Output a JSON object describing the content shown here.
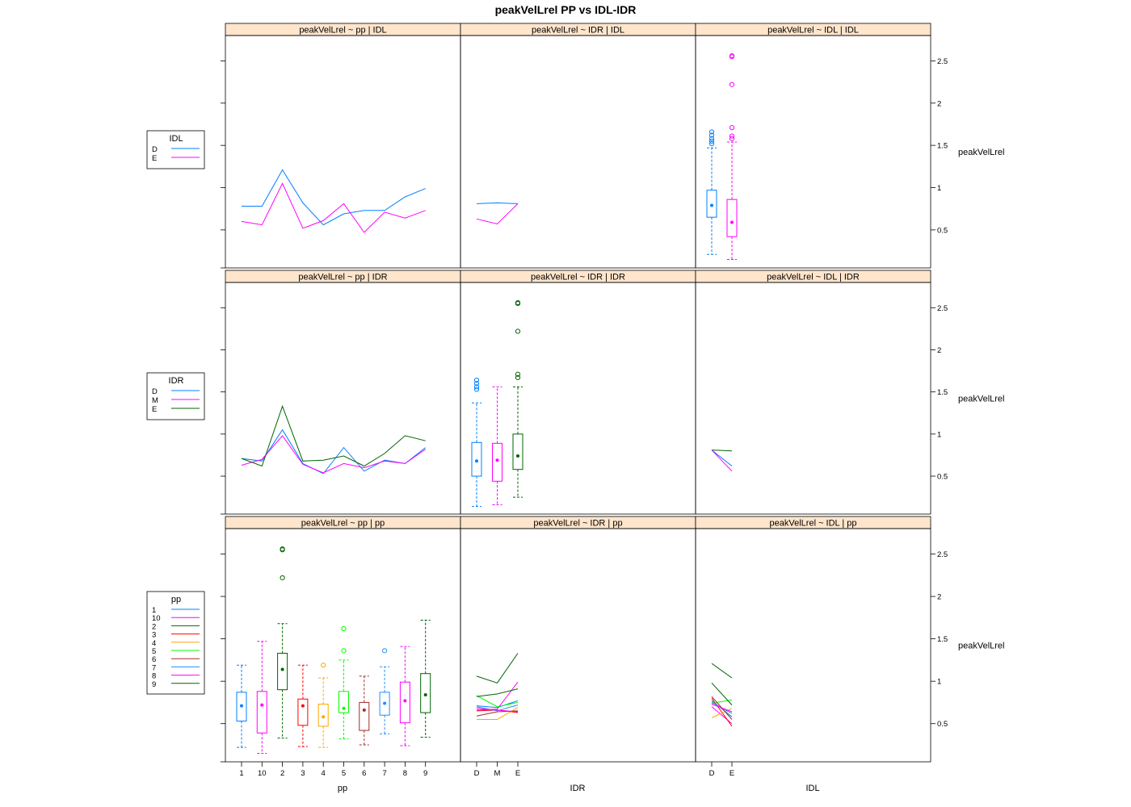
{
  "title": "peakVelLrel   PP vs IDL-IDR",
  "colors": {
    "strip_fill": "#ffe5cc",
    "pp": {
      "1": "#0080ff",
      "10": "#ff00ff",
      "2": "#006400",
      "3": "#ff0000",
      "4": "#ffa500",
      "5": "#00ff00",
      "6": "#a52a2a",
      "7": "#1e90ff",
      "8": "#ff00ff",
      "9": "#006400"
    },
    "IDL": {
      "D": "#0080ff",
      "E": "#ff00ff"
    },
    "IDR": {
      "D": "#0080ff",
      "M": "#ff00ff",
      "E": "#006400"
    }
  },
  "y_axis": {
    "label": "peakVelLrel",
    "ticks": [
      "0.5",
      "1",
      "1.5",
      "2",
      "2.5"
    ],
    "ylim": [
      0.05,
      2.8
    ]
  },
  "columns": [
    {
      "label": "pp",
      "categories": [
        "1",
        "10",
        "2",
        "3",
        "4",
        "5",
        "6",
        "7",
        "8",
        "9"
      ]
    },
    {
      "label": "IDR",
      "categories": [
        "D",
        "M",
        "E"
      ]
    },
    {
      "label": "IDL",
      "categories": [
        "D",
        "E"
      ]
    }
  ],
  "rows": [
    {
      "group": "IDL",
      "legend": {
        "title": "IDL",
        "keys": [
          "D",
          "E"
        ]
      }
    },
    {
      "group": "IDR",
      "legend": {
        "title": "IDR",
        "keys": [
          "D",
          "M",
          "E"
        ]
      }
    },
    {
      "group": "pp",
      "legend": {
        "title": "pp",
        "keys": [
          "1",
          "10",
          "2",
          "3",
          "4",
          "5",
          "6",
          "7",
          "8",
          "9"
        ]
      }
    }
  ],
  "strips": [
    [
      "peakVelLrel ~ pp | IDL",
      "peakVelLrel ~ IDR | IDL",
      "peakVelLrel ~ IDL | IDL"
    ],
    [
      "peakVelLrel ~ pp | IDR",
      "peakVelLrel ~ IDR | IDR",
      "peakVelLrel ~ IDL | IDR"
    ],
    [
      "peakVelLrel ~ pp | pp",
      "peakVelLrel ~ IDR | pp",
      "peakVelLrel ~ IDL | pp"
    ]
  ],
  "chart_data": [
    {
      "panel": "peakVelLrel ~ pp | IDL",
      "type": "line",
      "x": [
        "1",
        "10",
        "2",
        "3",
        "4",
        "5",
        "6",
        "7",
        "8",
        "9"
      ],
      "series": [
        {
          "name": "D",
          "values": [
            0.78,
            0.78,
            1.21,
            0.82,
            0.56,
            0.69,
            0.73,
            0.73,
            0.89,
            0.99
          ]
        },
        {
          "name": "E",
          "values": [
            0.6,
            0.56,
            1.05,
            0.52,
            0.61,
            0.81,
            0.47,
            0.71,
            0.64,
            0.73
          ]
        }
      ]
    },
    {
      "panel": "peakVelLrel ~ IDR | IDL",
      "type": "line",
      "x": [
        "D",
        "M",
        "E"
      ],
      "series": [
        {
          "name": "D",
          "values": [
            0.81,
            0.82,
            0.81
          ]
        },
        {
          "name": "E",
          "values": [
            0.63,
            0.57,
            0.81
          ]
        }
      ]
    },
    {
      "panel": "peakVelLrel ~ IDL | IDL",
      "type": "box",
      "categories": [
        "D",
        "E"
      ],
      "boxes": [
        {
          "name": "D",
          "min": 0.21,
          "q1": 0.65,
          "median": 0.79,
          "q3": 0.97,
          "max": 1.47,
          "outliers": [
            1.52,
            1.55,
            1.58,
            1.62,
            1.66
          ]
        },
        {
          "name": "E",
          "min": 0.15,
          "q1": 0.42,
          "median": 0.59,
          "q3": 0.86,
          "max": 1.54,
          "outliers": [
            1.58,
            1.61,
            1.71,
            2.22,
            2.55,
            2.56
          ]
        }
      ]
    },
    {
      "panel": "peakVelLrel ~ pp | IDR",
      "type": "line",
      "x": [
        "1",
        "10",
        "2",
        "3",
        "4",
        "5",
        "6",
        "7",
        "8",
        "9"
      ],
      "series": [
        {
          "name": "D",
          "values": [
            0.71,
            0.68,
            1.05,
            0.65,
            0.53,
            0.84,
            0.56,
            0.69,
            0.65,
            0.84
          ]
        },
        {
          "name": "M",
          "values": [
            0.63,
            0.7,
            0.98,
            0.64,
            0.54,
            0.65,
            0.6,
            0.68,
            0.65,
            0.82
          ]
        },
        {
          "name": "E",
          "values": [
            0.71,
            0.62,
            1.33,
            0.68,
            0.69,
            0.74,
            0.62,
            0.77,
            0.98,
            0.92
          ]
        }
      ]
    },
    {
      "panel": "peakVelLrel ~ IDR | IDR",
      "type": "box",
      "categories": [
        "D",
        "M",
        "E"
      ],
      "boxes": [
        {
          "name": "D",
          "min": 0.14,
          "q1": 0.5,
          "median": 0.68,
          "q3": 0.9,
          "max": 1.37,
          "outliers": [
            1.53,
            1.56,
            1.6,
            1.64
          ]
        },
        {
          "name": "M",
          "min": 0.16,
          "q1": 0.44,
          "median": 0.69,
          "q3": 0.89,
          "max": 1.56,
          "outliers": []
        },
        {
          "name": "E",
          "min": 0.25,
          "q1": 0.58,
          "median": 0.74,
          "q3": 1.0,
          "max": 1.56,
          "outliers": [
            1.67,
            1.71,
            2.22,
            2.55,
            2.56
          ]
        }
      ]
    },
    {
      "panel": "peakVelLrel ~ IDL | IDR",
      "type": "line",
      "x": [
        "D",
        "E"
      ],
      "series": [
        {
          "name": "D",
          "values": [
            0.81,
            0.62
          ]
        },
        {
          "name": "M",
          "values": [
            0.81,
            0.56
          ]
        },
        {
          "name": "E",
          "values": [
            0.81,
            0.8
          ]
        }
      ]
    },
    {
      "panel": "peakVelLrel ~ pp | pp",
      "type": "box",
      "categories": [
        "1",
        "10",
        "2",
        "3",
        "4",
        "5",
        "6",
        "7",
        "8",
        "9"
      ],
      "boxes": [
        {
          "name": "1",
          "min": 0.22,
          "q1": 0.53,
          "median": 0.71,
          "q3": 0.87,
          "max": 1.19,
          "outliers": []
        },
        {
          "name": "10",
          "min": 0.15,
          "q1": 0.39,
          "median": 0.72,
          "q3": 0.88,
          "max": 1.47,
          "outliers": []
        },
        {
          "name": "2",
          "min": 0.33,
          "q1": 0.9,
          "median": 1.14,
          "q3": 1.33,
          "max": 1.68,
          "outliers": [
            2.22,
            2.55,
            2.56
          ]
        },
        {
          "name": "3",
          "min": 0.23,
          "q1": 0.48,
          "median": 0.71,
          "q3": 0.79,
          "max": 1.19,
          "outliers": []
        },
        {
          "name": "4",
          "min": 0.22,
          "q1": 0.47,
          "median": 0.58,
          "q3": 0.73,
          "max": 1.04,
          "outliers": [
            1.19
          ]
        },
        {
          "name": "5",
          "min": 0.32,
          "q1": 0.63,
          "median": 0.68,
          "q3": 0.88,
          "max": 1.25,
          "outliers": [
            1.36,
            1.62
          ]
        },
        {
          "name": "6",
          "min": 0.25,
          "q1": 0.42,
          "median": 0.66,
          "q3": 0.75,
          "max": 1.06,
          "outliers": []
        },
        {
          "name": "7",
          "min": 0.38,
          "q1": 0.6,
          "median": 0.74,
          "q3": 0.87,
          "max": 1.17,
          "outliers": [
            1.36
          ]
        },
        {
          "name": "8",
          "min": 0.24,
          "q1": 0.51,
          "median": 0.77,
          "q3": 0.99,
          "max": 1.41,
          "outliers": []
        },
        {
          "name": "9",
          "min": 0.34,
          "q1": 0.63,
          "median": 0.84,
          "q3": 1.09,
          "max": 1.72,
          "outliers": []
        }
      ]
    },
    {
      "panel": "peakVelLrel ~ IDR | pp",
      "type": "line",
      "x": [
        "D",
        "M",
        "E"
      ],
      "series": [
        {
          "name": "1",
          "values": [
            0.71,
            0.69,
            0.77
          ]
        },
        {
          "name": "10",
          "values": [
            0.66,
            0.67,
            0.99
          ]
        },
        {
          "name": "2",
          "values": [
            1.06,
            0.98,
            1.33
          ]
        },
        {
          "name": "3",
          "values": [
            0.65,
            0.66,
            0.63
          ]
        },
        {
          "name": "4",
          "values": [
            0.55,
            0.55,
            0.69
          ]
        },
        {
          "name": "5",
          "values": [
            0.83,
            0.7,
            0.75
          ]
        },
        {
          "name": "6",
          "values": [
            0.59,
            0.64,
            0.65
          ]
        },
        {
          "name": "7",
          "values": [
            0.7,
            0.65,
            0.72
          ]
        },
        {
          "name": "8",
          "values": [
            0.68,
            0.66,
            0.64
          ]
        },
        {
          "name": "9",
          "values": [
            0.82,
            0.85,
            0.91
          ]
        }
      ]
    },
    {
      "panel": "peakVelLrel ~ IDL | pp",
      "type": "line",
      "x": [
        "D",
        "E"
      ],
      "series": [
        {
          "name": "1",
          "values": [
            0.77,
            0.58
          ]
        },
        {
          "name": "10",
          "values": [
            0.7,
            0.5
          ]
        },
        {
          "name": "2",
          "values": [
            1.21,
            1.04
          ]
        },
        {
          "name": "3",
          "values": [
            0.8,
            0.47
          ]
        },
        {
          "name": "4",
          "values": [
            0.57,
            0.68
          ]
        },
        {
          "name": "5",
          "values": [
            0.74,
            0.78
          ]
        },
        {
          "name": "6",
          "values": [
            0.82,
            0.55
          ]
        },
        {
          "name": "7",
          "values": [
            0.75,
            0.62
          ]
        },
        {
          "name": "8",
          "values": [
            0.73,
            0.64
          ]
        },
        {
          "name": "9",
          "values": [
            0.98,
            0.72
          ]
        }
      ]
    }
  ]
}
